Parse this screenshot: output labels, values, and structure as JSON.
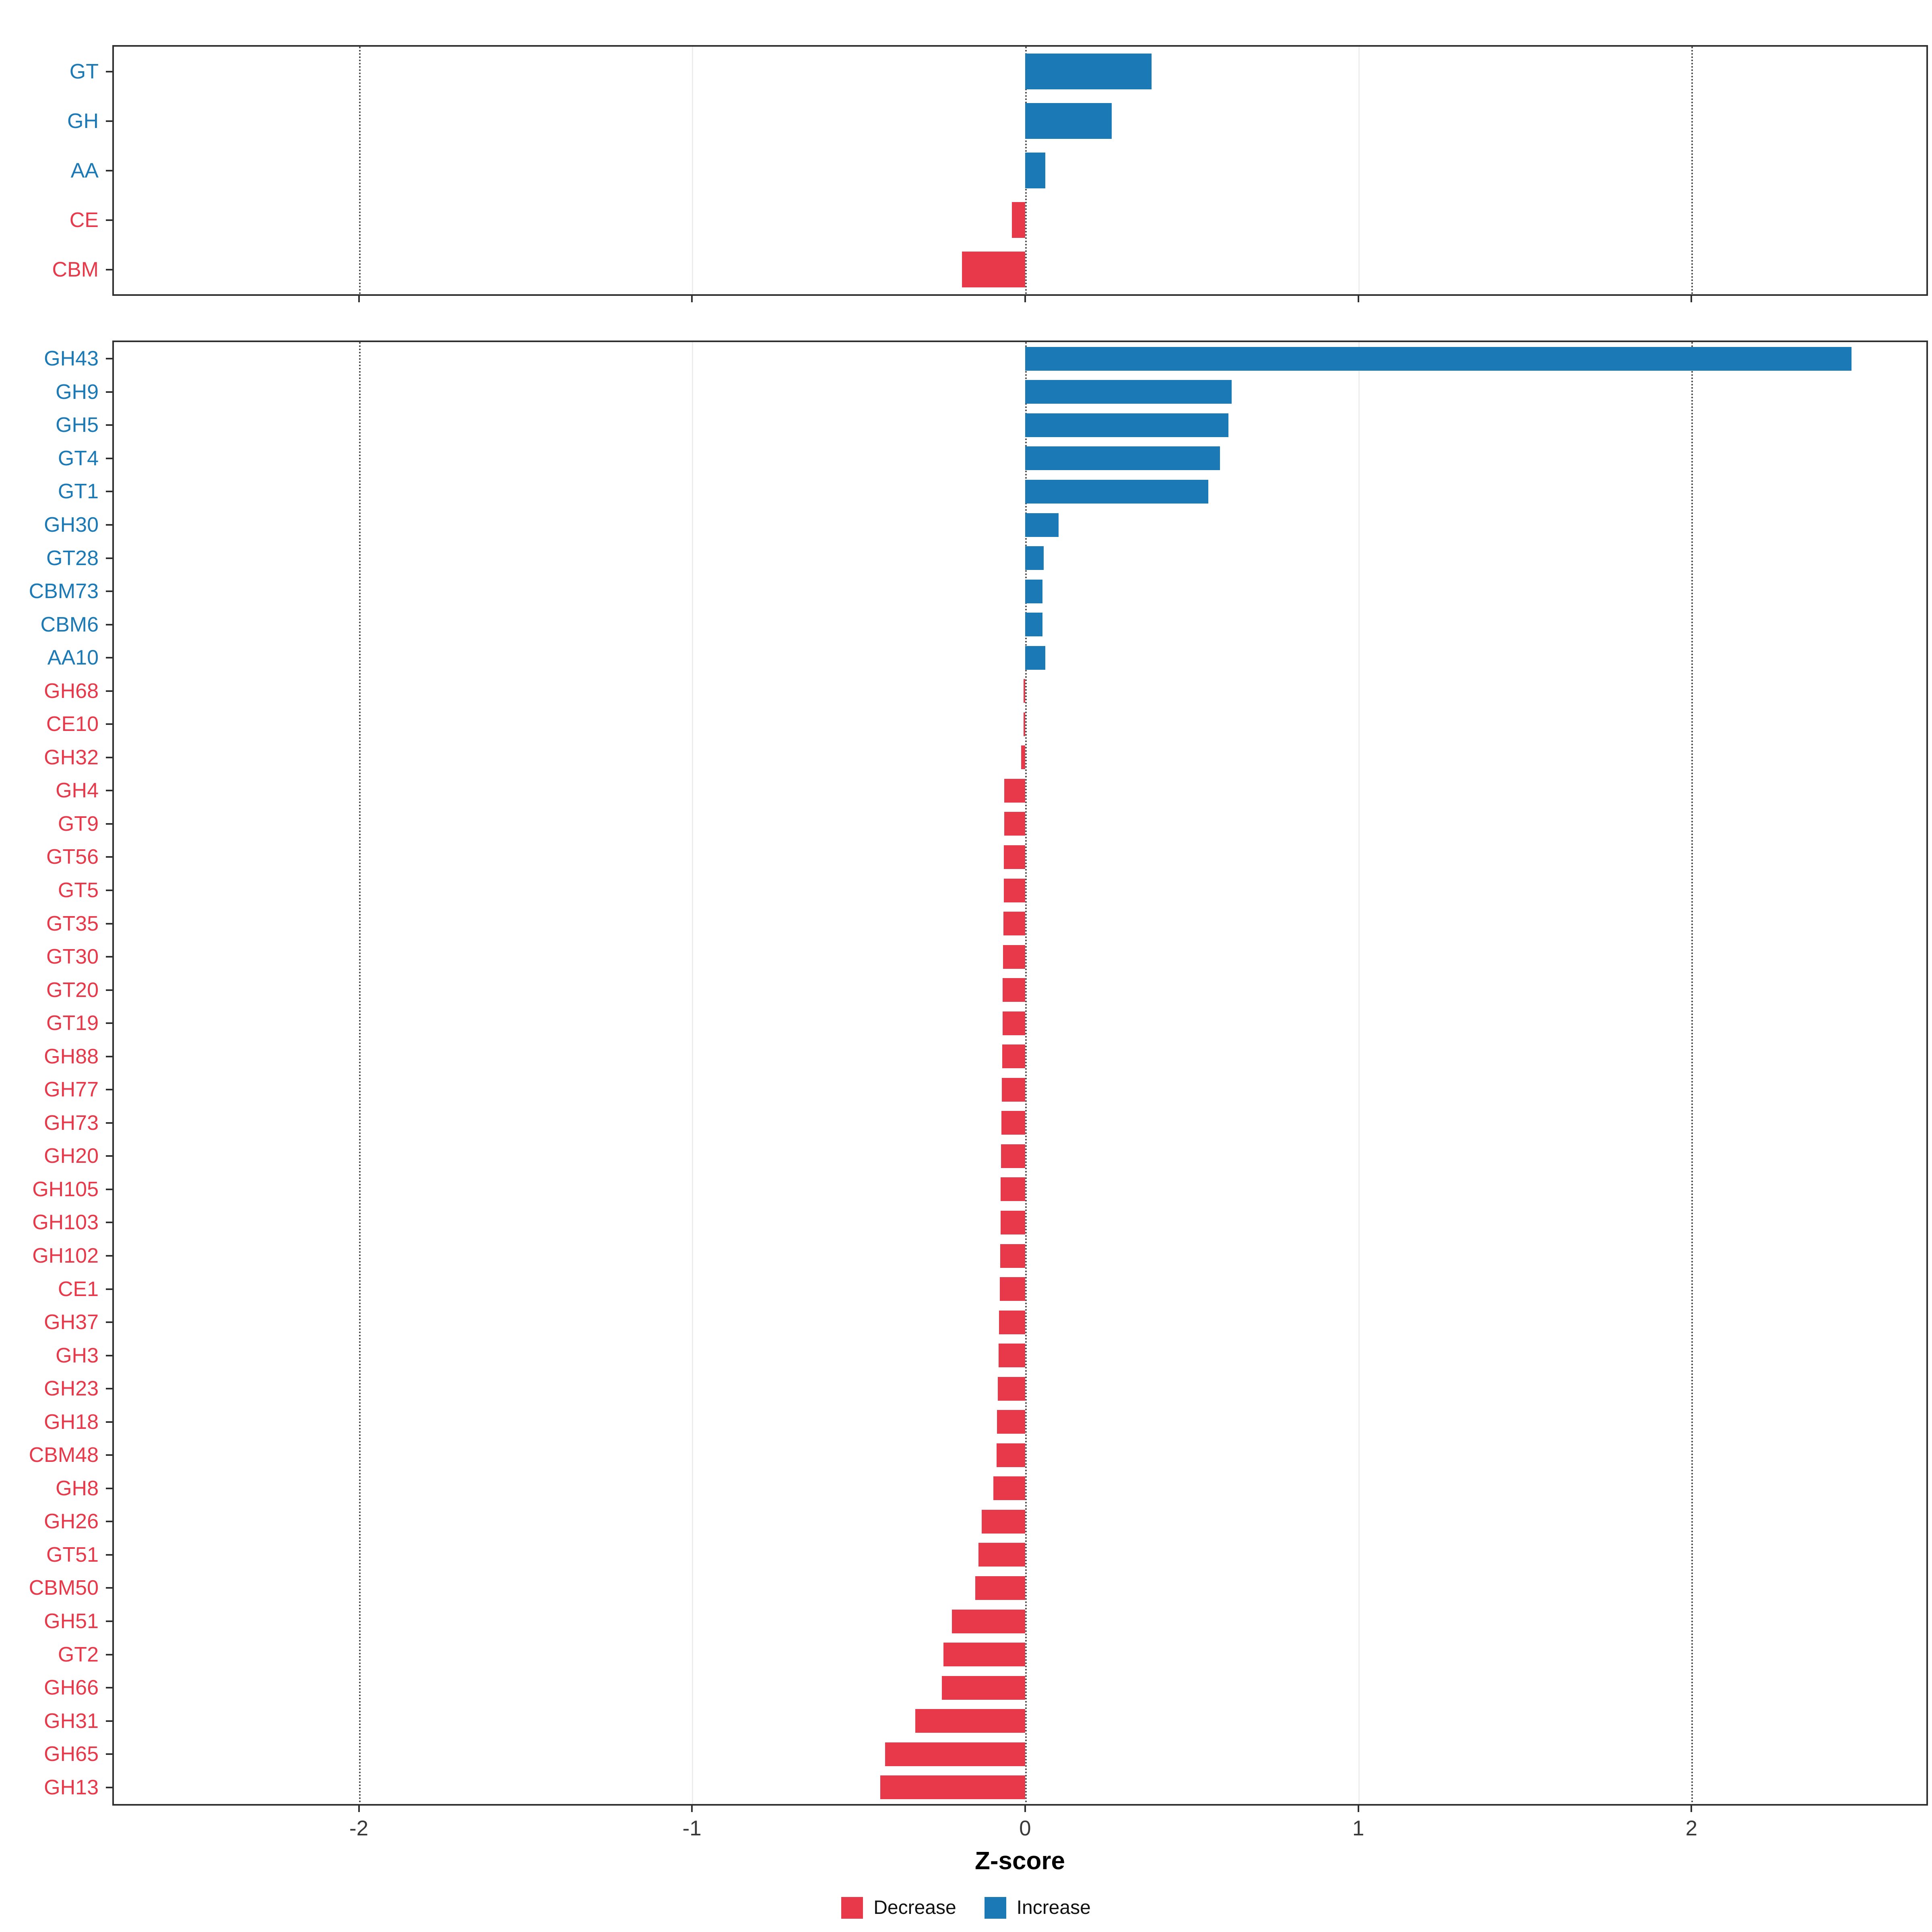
{
  "xlabel": "Z-score",
  "colors": {
    "increase": "#1B79B5",
    "decrease": "#E8394B"
  },
  "legend": [
    {
      "label": "Decrease",
      "color": "#E8394B"
    },
    {
      "label": "Increase",
      "color": "#1B79B5"
    }
  ],
  "chart_data": [
    {
      "type": "bar",
      "orientation": "horizontal",
      "panel": "cazyme-classes",
      "xlabel": "Z-score",
      "xlim": [
        -2.74,
        2.71
      ],
      "xticks": [
        -2,
        -1,
        0,
        1,
        2
      ],
      "xtick_labels": [
        "-2",
        "-1",
        "0",
        "1",
        "2"
      ],
      "grid_dotted": [
        -2,
        0,
        2
      ],
      "grid_light": [
        -1,
        1
      ],
      "categories": [
        "GT",
        "GH",
        "AA",
        "CE",
        "CBM"
      ],
      "values": [
        0.38,
        0.26,
        0.06,
        -0.04,
        -0.19
      ]
    },
    {
      "type": "bar",
      "orientation": "horizontal",
      "panel": "cazyme-families",
      "xlabel": "Z-score",
      "xlim": [
        -2.74,
        2.71
      ],
      "xticks": [
        -2,
        -1,
        0,
        1,
        2
      ],
      "xtick_labels": [
        "-2",
        "-1",
        "0",
        "1",
        "2"
      ],
      "grid_dotted": [
        -2,
        0,
        2
      ],
      "grid_light": [
        -1,
        1
      ],
      "categories": [
        "GH43",
        "GH9",
        "GH5",
        "GT4",
        "GT1",
        "GH30",
        "GT28",
        "CBM73",
        "CBM6",
        "AA10",
        "GH68",
        "CE10",
        "GH32",
        "GH4",
        "GT9",
        "GT56",
        "GT5",
        "GT35",
        "GT30",
        "GT20",
        "GT19",
        "GH88",
        "GH77",
        "GH73",
        "GH20",
        "GH105",
        "GH103",
        "GH102",
        "CE1",
        "GH37",
        "GH3",
        "GH23",
        "GH18",
        "CBM48",
        "GH8",
        "GH26",
        "GT51",
        "CBM50",
        "GH51",
        "GT2",
        "GH66",
        "GH31",
        "GH65",
        "GH13"
      ],
      "values": [
        2.48,
        0.62,
        0.61,
        0.585,
        0.55,
        0.1,
        0.056,
        0.052,
        0.052,
        0.06,
        -0.004,
        -0.004,
        -0.012,
        -0.063,
        -0.063,
        -0.064,
        -0.064,
        -0.065,
        -0.066,
        -0.067,
        -0.068,
        -0.069,
        -0.07,
        -0.071,
        -0.072,
        -0.073,
        -0.074,
        -0.075,
        -0.076,
        -0.078,
        -0.08,
        -0.082,
        -0.084,
        -0.086,
        -0.095,
        -0.13,
        -0.14,
        -0.15,
        -0.22,
        -0.245,
        -0.25,
        -0.33,
        -0.42,
        -0.435
      ]
    }
  ]
}
